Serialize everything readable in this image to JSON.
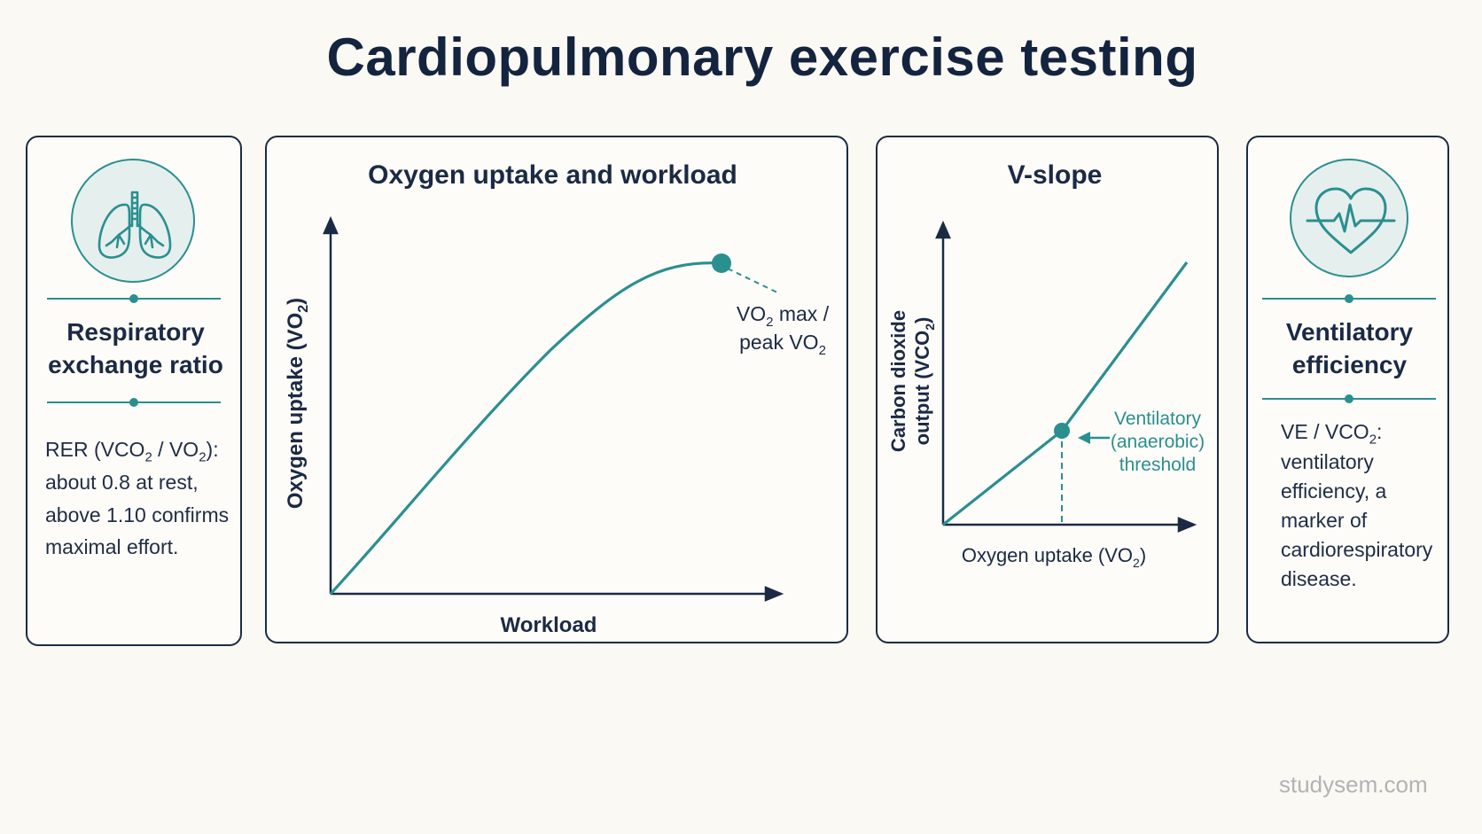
{
  "title": "Cardiopulmonary exercise testing",
  "left_panel": {
    "icon": "lungs-icon",
    "heading_lines": [
      "Respiratory",
      "exchange ratio"
    ],
    "body": {
      "line1": {
        "a": "RER (VCO",
        "b": "2",
        "c": " / VO",
        "d": "2",
        "e": "):"
      },
      "line2": "about 0.8 at rest,",
      "line3": "above 1.10 confirms",
      "line4": "maximal effort."
    }
  },
  "chart_data": [
    {
      "type": "line",
      "title": "Oxygen uptake and workload",
      "xlabel": "Workload",
      "ylabel": {
        "main": "Oxygen uptake (VO",
        "sub": "2",
        "end": ")"
      },
      "annotation": {
        "line1": {
          "a": "VO",
          "b": "2",
          "c": " max /"
        },
        "line2": {
          "a": "peak VO",
          "b": "2"
        }
      }
    },
    {
      "type": "line",
      "title": "V-slope",
      "xlabel": {
        "main": "Oxygen uptake (VO",
        "sub": "2",
        "end": ")"
      },
      "ylabel": {
        "line1": "Carbon dioxide",
        "line2a": "output (VCO",
        "line2b": "2",
        "line2c": ")"
      },
      "annotation": [
        "Ventilatory",
        "(anaerobic)",
        "threshold"
      ]
    }
  ],
  "right_panel": {
    "icon": "heart-pulse-icon",
    "heading_lines": [
      "Ventilatory",
      "efficiency"
    ],
    "body": {
      "line1": {
        "a": "VE / VCO",
        "b": "2",
        "c": ":"
      },
      "line2": "ventilatory",
      "line3": "efficiency, a",
      "line4": "marker of",
      "line5": "cardiorespiratory",
      "line6": "disease."
    }
  },
  "watermark": "studysem.com",
  "colors": {
    "teal": "#2a8f8f",
    "navy": "#1b2a44",
    "background": "#fbf9f4"
  }
}
